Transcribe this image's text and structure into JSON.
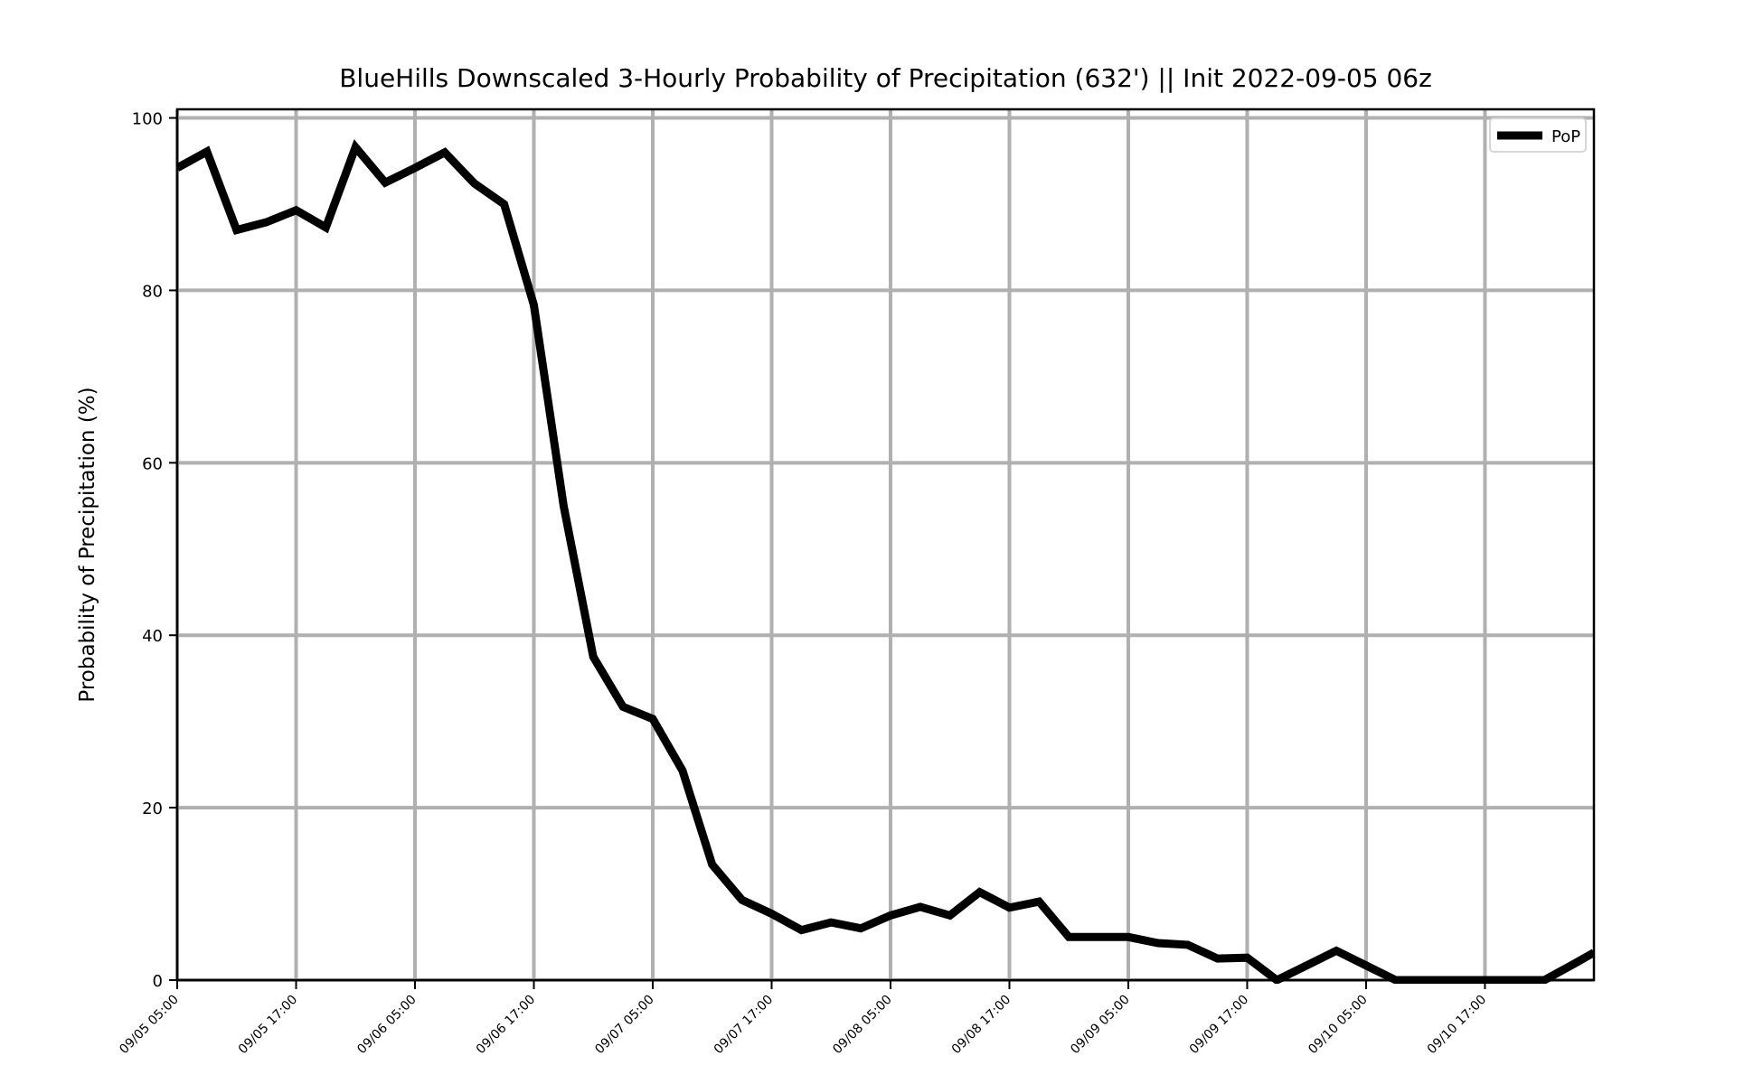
{
  "chart_data": {
    "type": "line",
    "title": "BlueHills Downscaled 3-Hourly Probability of Precipitation (632') || Init 2022-09-05 06z",
    "xlabel": "",
    "ylabel": "Probability of Precipitation (%)",
    "ylim": [
      0,
      101
    ],
    "yticks": [
      0,
      20,
      40,
      60,
      80,
      100
    ],
    "xlim": [
      "09/05 05:00",
      "09/11 04:00"
    ],
    "xticks": [
      "09/05 05:00",
      "09/05 17:00",
      "09/06 05:00",
      "09/06 17:00",
      "09/07 05:00",
      "09/07 17:00",
      "09/08 05:00",
      "09/08 17:00",
      "09/09 05:00",
      "09/09 17:00",
      "09/10 05:00",
      "09/10 17:00"
    ],
    "grid": true,
    "legend": {
      "position": "top-right",
      "entries": [
        "PoP"
      ]
    },
    "series": [
      {
        "name": "PoP",
        "color": "#000000",
        "x": [
          "09/05 05:00",
          "09/05 08:00",
          "09/05 11:00",
          "09/05 14:00",
          "09/05 17:00",
          "09/05 20:00",
          "09/05 23:00",
          "09/06 02:00",
          "09/06 05:00",
          "09/06 08:00",
          "09/06 11:00",
          "09/06 14:00",
          "09/06 17:00",
          "09/06 20:00",
          "09/06 23:00",
          "09/07 02:00",
          "09/07 05:00",
          "09/07 08:00",
          "09/07 11:00",
          "09/07 14:00",
          "09/07 17:00",
          "09/07 20:00",
          "09/07 23:00",
          "09/08 02:00",
          "09/08 05:00",
          "09/08 08:00",
          "09/08 11:00",
          "09/08 14:00",
          "09/08 17:00",
          "09/08 20:00",
          "09/08 23:00",
          "09/09 02:00",
          "09/09 05:00",
          "09/09 08:00",
          "09/09 11:00",
          "09/09 14:00",
          "09/09 17:00",
          "09/09 20:00",
          "09/09 23:00",
          "09/10 02:00",
          "09/10 05:00",
          "09/10 08:00",
          "09/10 11:00",
          "09/10 14:00",
          "09/10 17:00",
          "09/10 20:00",
          "09/10 23:00",
          "09/11 02:00",
          "09/11 04:00"
        ],
        "values": [
          94.2,
          96.1,
          87.0,
          87.9,
          89.3,
          87.3,
          96.6,
          92.5,
          94.2,
          96.0,
          92.4,
          90.0,
          78.3,
          55.0,
          37.5,
          31.7,
          30.3,
          24.3,
          13.4,
          9.3,
          7.7,
          5.8,
          6.7,
          6.0,
          7.5,
          8.5,
          7.5,
          10.2,
          8.4,
          9.1,
          5.0,
          5.0,
          5.0,
          4.3,
          4.1,
          2.5,
          2.6,
          0.0,
          1.7,
          3.4,
          1.7,
          0.0,
          0.0,
          0.0,
          0.0,
          0.0,
          0.0,
          1.9,
          3.2
        ]
      }
    ]
  }
}
